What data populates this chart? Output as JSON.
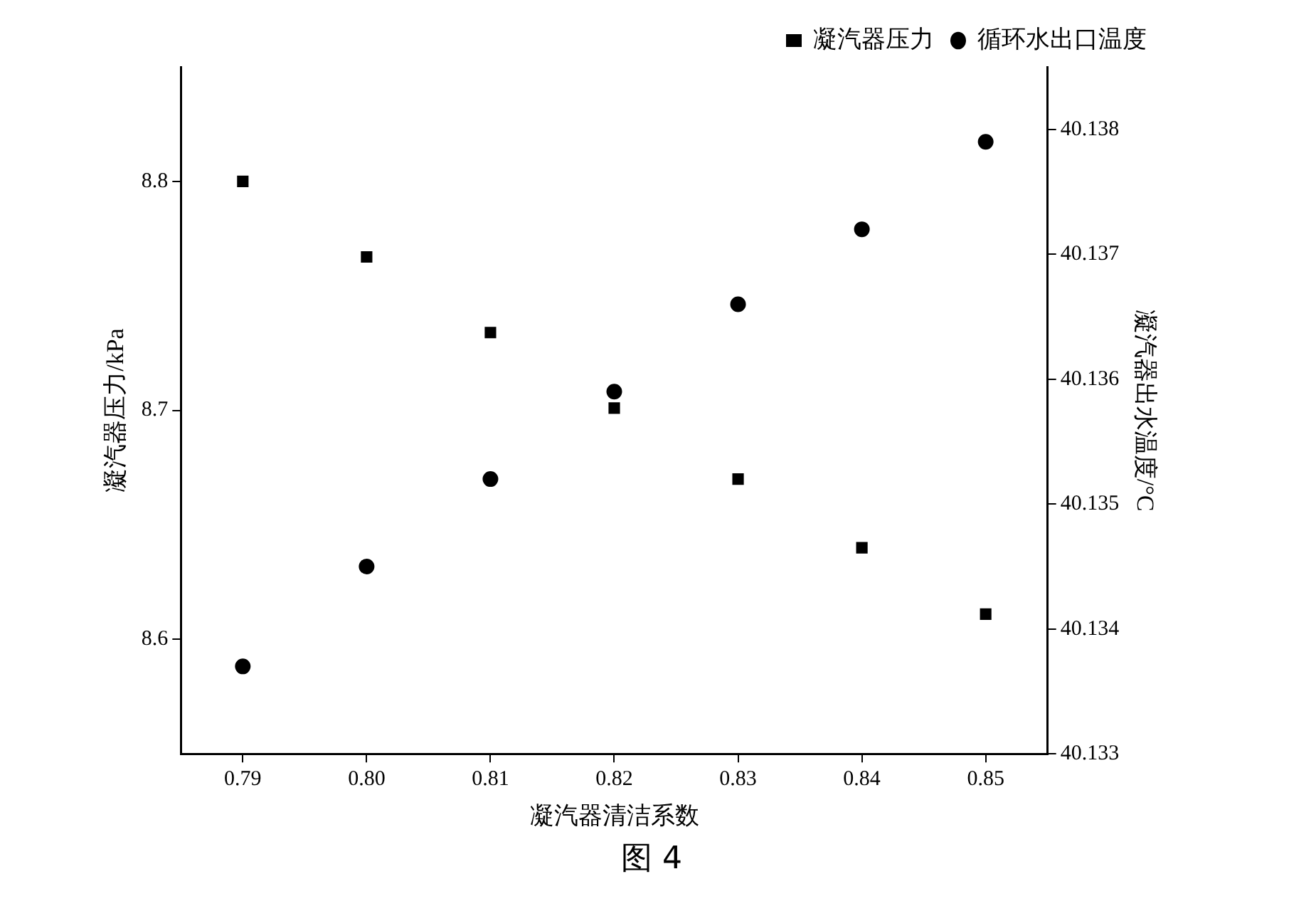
{
  "chart_data": {
    "type": "scatter",
    "xlabel": "凝汽器清洁系数",
    "ylabel": "凝汽器压力/kPa",
    "y2label": "凝汽器出水温度/°C",
    "x": [
      0.79,
      0.8,
      0.81,
      0.82,
      0.83,
      0.84,
      0.85
    ],
    "series": [
      {
        "name": "凝汽器压力",
        "color": "#000000",
        "marker": "square",
        "values": [
          8.8,
          8.767,
          8.734,
          8.701,
          8.67,
          8.64,
          8.611
        ]
      },
      {
        "name": "循环水出口温度",
        "color": "#000000",
        "marker": "circle",
        "axis": "y2",
        "values": [
          40.1337,
          40.1345,
          40.1352,
          40.1359,
          40.1366,
          40.1372,
          40.1379
        ]
      }
    ],
    "xlim": [
      0.785,
      0.855
    ],
    "xticks": [
      0.79,
      {
        "value": 0.8,
        "label": "0.80"
      },
      0.81,
      0.82,
      0.83,
      0.84,
      0.85
    ],
    "ylim": [
      8.55,
      8.85
    ],
    "yticks": [
      8.6,
      8.7,
      8.8
    ],
    "y2lim": [
      40.133,
      40.1385
    ],
    "y2ticks": [
      40.133,
      40.134,
      40.135,
      40.136,
      40.137,
      40.138
    ],
    "grid": false,
    "legend": "top right",
    "annotations": [
      "图 4"
    ]
  }
}
